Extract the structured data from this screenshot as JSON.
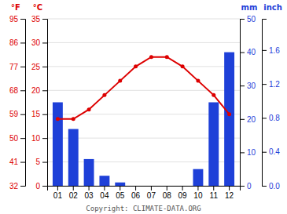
{
  "chart_data": {
    "type": "bar",
    "categories": [
      "01",
      "02",
      "03",
      "04",
      "05",
      "06",
      "07",
      "08",
      "09",
      "10",
      "11",
      "12"
    ],
    "series": [
      {
        "type": "bar",
        "axis": "y2",
        "color": "#1e40d8",
        "values": [
          25,
          17,
          8,
          3,
          1,
          0,
          0,
          0,
          0,
          5,
          25,
          40
        ]
      },
      {
        "type": "line",
        "color": "#dd0000",
        "marker": "circle",
        "values": [
          14,
          14,
          16,
          19,
          22,
          25,
          27,
          27,
          25,
          22,
          19,
          15
        ]
      }
    ],
    "ylabel": "°C",
    "ylim": [
      0,
      35
    ],
    "yticks": [
      0,
      5,
      10,
      15,
      20,
      25,
      30,
      35
    ],
    "y2label": "mm",
    "y2lim": [
      0,
      50
    ],
    "y2ticks": [
      0,
      10,
      20,
      30,
      40,
      50
    ],
    "y3label": "°F",
    "y3lim": [
      32,
      95
    ],
    "y3ticks": [
      32,
      41,
      50,
      59,
      68,
      77,
      86,
      95
    ],
    "y4label": "inch",
    "y4lim": [
      0,
      1.968503937007874
    ],
    "y4ticks": [
      {
        "value": 0,
        "label": "0.0"
      },
      0.4,
      0.8,
      1.2,
      1.6
    ],
    "grid": true,
    "annotations": [
      "Copyright: CLIMATE-DATA.ORG"
    ]
  }
}
